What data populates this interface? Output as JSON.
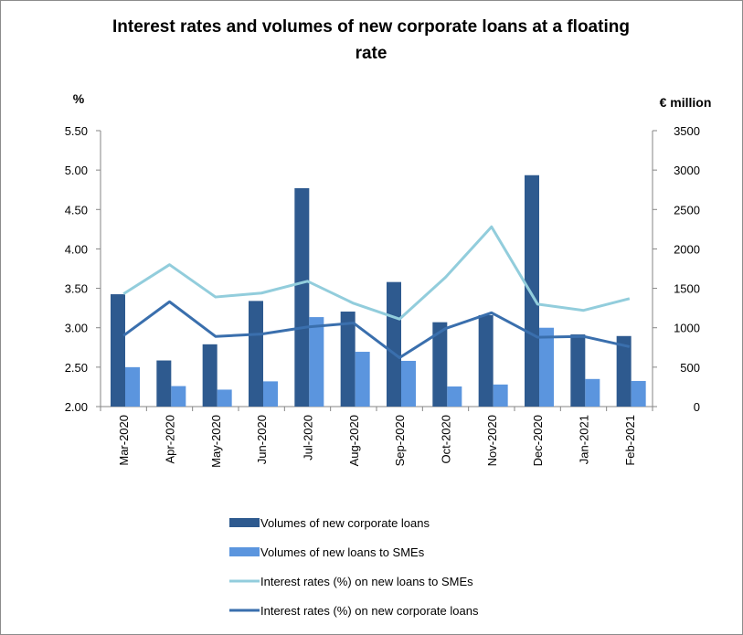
{
  "chart_data": {
    "type": "bar",
    "title_line1": "Interest rates and volumes of new corporate loans at a floating",
    "title_line2": "rate",
    "ylabel_left": "%",
    "ylabel_right": "€ million",
    "categories": [
      "Mar-2020",
      "Apr-2020",
      "May-2020",
      "Jun-2020",
      "Jul-2020",
      "Aug-2020",
      "Sep-2020",
      "Oct-2020",
      "Nov-2020",
      "Dec-2020",
      "Jan-2021",
      "Feb-2021"
    ],
    "ylim_left": [
      2.0,
      5.5
    ],
    "yticks_left": [
      "2.00",
      "2.50",
      "3.00",
      "3.50",
      "4.00",
      "4.50",
      "5.00",
      "5.50"
    ],
    "ylim_right": [
      0,
      3500
    ],
    "yticks_right": [
      "0",
      "500",
      "1000",
      "1500",
      "2000",
      "2500",
      "3000",
      "3500"
    ],
    "grid": false,
    "legend_position": "bottom",
    "series": [
      {
        "name": "Volumes of new corporate loans",
        "kind": "bar",
        "axis": "right",
        "color": "#2e5a8f",
        "values": [
          1425,
          585,
          790,
          1340,
          2770,
          1205,
          1580,
          1070,
          1160,
          2935,
          915,
          895
        ]
      },
      {
        "name": "Volumes of new loans to SMEs",
        "kind": "bar",
        "axis": "right",
        "color": "#5b95de",
        "values": [
          500,
          260,
          215,
          320,
          1135,
          695,
          580,
          255,
          280,
          1000,
          350,
          325
        ]
      },
      {
        "name": "Interest rates (%) on new loans to SMEs",
        "kind": "line",
        "axis": "left",
        "color": "#92cddc",
        "values": [
          3.43,
          3.8,
          3.39,
          3.44,
          3.59,
          3.31,
          3.11,
          3.64,
          4.28,
          3.3,
          3.22,
          3.37
        ]
      },
      {
        "name": "Interest rates (%) on new corporate loans",
        "kind": "line",
        "axis": "left",
        "color": "#3a6fad",
        "values": [
          2.9,
          3.33,
          2.89,
          2.92,
          3.01,
          3.06,
          2.62,
          2.99,
          3.19,
          2.88,
          2.89,
          2.76
        ]
      }
    ]
  }
}
